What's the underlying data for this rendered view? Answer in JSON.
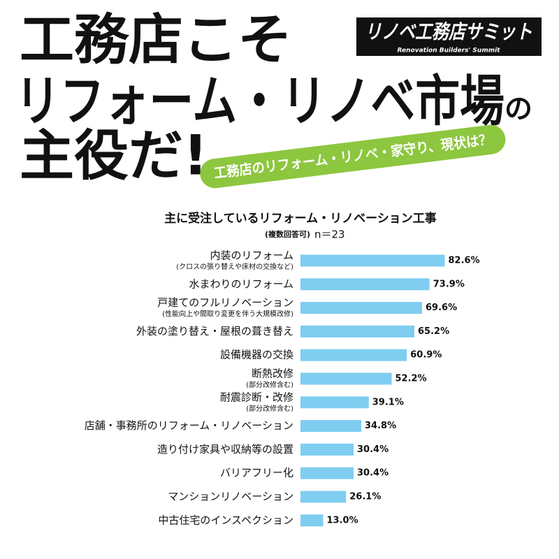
{
  "header": {
    "line1": "工務店こそ",
    "line2": "リフォーム・リノベ市場",
    "particle": "の",
    "line3": "主役だ!",
    "banner": "工務店のリフォーム・リノベ・家守り、現状は？",
    "logo": "リノベ工務店サミット",
    "logo_sub": "Renovation Builders' Summit"
  },
  "chart_data": {
    "type": "hbar",
    "title": "主に受注しているリフォーム・リノベーション工事",
    "note": "(複数回答可)",
    "subtitle": "n＝23",
    "color": "#7fcdf0",
    "categories": [
      "内装のリフォーム",
      "水まわりのリフォーム",
      "戸建てのフルリノベーション",
      "外装の塗り替え・屋根の葺き替え",
      "設備機器の交換",
      "断熱改修",
      "耐震診断・改修",
      "店舗・事務所のリフォーム・リノベーション",
      "造り付け家具や収納等の設置",
      "バリアフリー化",
      "マンションリノベーション",
      "中古住宅のインスペクション"
    ],
    "sublabels": [
      "(クロスの張り替えや床材の交換など)",
      null,
      "(性能向上や間取り変更を伴う大規模改修)",
      null,
      null,
      "(部分改修含む)",
      "(部分改修含む)",
      null,
      null,
      null,
      null,
      null
    ],
    "values": [
      82.6,
      73.9,
      69.6,
      65.2,
      60.9,
      52.2,
      39.1,
      34.8,
      30.4,
      30.4,
      26.1,
      13.0
    ],
    "value_labels": [
      "82.6%",
      "73.9%",
      "69.6%",
      "65.2%",
      "60.9%",
      "52.2%",
      "39.1%",
      "34.8%",
      "30.4%",
      "30.4%",
      "26.1%",
      "13.0%"
    ]
  }
}
